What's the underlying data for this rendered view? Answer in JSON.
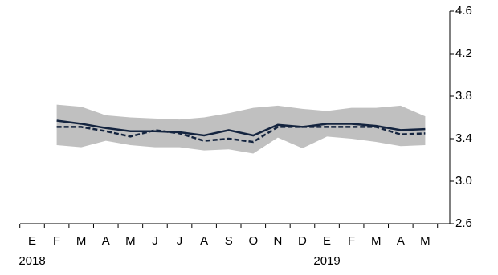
{
  "chart_data": {
    "type": "line",
    "categories": [
      "E",
      "F",
      "M",
      "A",
      "M",
      "J",
      "J",
      "A",
      "S",
      "O",
      "N",
      "D",
      "E",
      "F",
      "M",
      "A",
      "M"
    ],
    "year_labels": [
      "2018",
      null,
      null,
      null,
      null,
      null,
      null,
      null,
      null,
      null,
      null,
      null,
      "2019",
      null,
      null,
      null,
      null
    ],
    "band": {
      "color": "#c0c0c0",
      "upper": [
        null,
        3.72,
        3.7,
        3.62,
        3.6,
        3.59,
        3.58,
        3.6,
        3.64,
        3.69,
        3.71,
        3.68,
        3.66,
        3.69,
        3.69,
        3.71,
        3.61
      ],
      "lower": [
        null,
        3.34,
        3.32,
        3.38,
        3.34,
        3.32,
        3.32,
        3.29,
        3.3,
        3.26,
        3.41,
        3.31,
        3.42,
        3.4,
        3.37,
        3.33,
        3.34
      ]
    },
    "series": [
      {
        "color": "#14243f",
        "dash": false,
        "values": [
          null,
          3.57,
          3.54,
          3.5,
          3.47,
          3.47,
          3.46,
          3.43,
          3.48,
          3.43,
          3.53,
          3.51,
          3.54,
          3.54,
          3.52,
          3.48,
          3.49
        ]
      },
      {
        "color": "#14243f",
        "dash": true,
        "values": [
          null,
          3.51,
          3.51,
          3.47,
          3.42,
          3.48,
          3.45,
          3.38,
          3.4,
          3.37,
          3.51,
          3.51,
          3.51,
          3.51,
          3.51,
          3.44,
          3.45
        ]
      }
    ],
    "ylim": [
      2.6,
      4.6
    ],
    "yticks": [
      2.6,
      {
        "value": 3,
        "label": "3.0"
      },
      3.4,
      3.8,
      4.2,
      4.6
    ]
  }
}
